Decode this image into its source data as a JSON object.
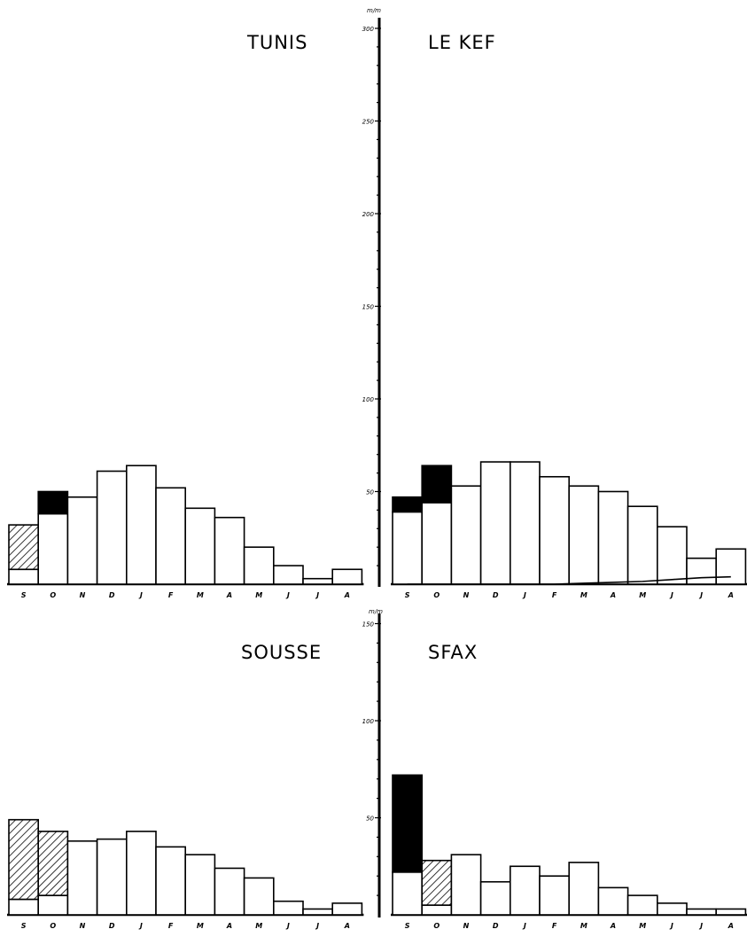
{
  "colors": {
    "ink": "#000000",
    "background": "#ffffff",
    "hatch": "#000000"
  },
  "chart_data": [
    {
      "type": "bar",
      "panel": "top-left",
      "title": "TUNIS",
      "unit_label": "m/m",
      "categories": [
        "S",
        "O",
        "N",
        "D",
        "J",
        "F",
        "M",
        "A",
        "M",
        "J",
        "J",
        "A"
      ],
      "ylim": [
        0,
        300
      ],
      "yticks": [
        50,
        100,
        150,
        200,
        250,
        300
      ],
      "series": [
        {
          "style": "white",
          "values": [
            8,
            38,
            47,
            61,
            64,
            52,
            41,
            36,
            20,
            10,
            3,
            8
          ]
        },
        {
          "style": "black",
          "values": [
            0,
            12,
            0,
            0,
            0,
            0,
            0,
            0,
            0,
            0,
            0,
            0
          ]
        },
        {
          "style": "hatched",
          "values": [
            24,
            0,
            0,
            0,
            0,
            0,
            0,
            0,
            0,
            0,
            0,
            0
          ]
        }
      ],
      "baseline_curve": [
        0,
        0,
        0,
        0,
        0,
        0,
        0,
        0,
        0,
        0,
        0,
        0
      ]
    },
    {
      "type": "bar",
      "panel": "top-right",
      "title": "LE KEF",
      "unit_label": "m/m",
      "categories": [
        "S",
        "O",
        "N",
        "D",
        "J",
        "F",
        "M",
        "A",
        "M",
        "J",
        "J",
        "A"
      ],
      "ylim": [
        0,
        300
      ],
      "yticks": [
        50,
        100,
        150,
        200,
        250,
        300
      ],
      "series": [
        {
          "style": "white",
          "values": [
            39,
            44,
            53,
            66,
            66,
            58,
            53,
            50,
            42,
            31,
            14,
            19
          ]
        },
        {
          "style": "black",
          "values": [
            8,
            20,
            0,
            0,
            0,
            0,
            0,
            0,
            0,
            0,
            0,
            0
          ]
        },
        {
          "style": "hatched",
          "values": [
            0,
            0,
            0,
            0,
            0,
            0,
            0,
            0,
            0,
            0,
            0,
            0
          ]
        }
      ],
      "baseline_curve": [
        0,
        0,
        0,
        0,
        0,
        0,
        0.5,
        1,
        1.5,
        2.5,
        3.5,
        4
      ]
    },
    {
      "type": "bar",
      "panel": "bottom-left",
      "title": "SOUSSE",
      "unit_label": "m/m",
      "categories": [
        "S",
        "O",
        "N",
        "D",
        "J",
        "F",
        "M",
        "A",
        "M",
        "J",
        "J",
        "A"
      ],
      "ylim": [
        0,
        150
      ],
      "yticks": [
        50,
        100,
        150
      ],
      "series": [
        {
          "style": "white",
          "values": [
            8,
            10,
            38,
            39,
            43,
            35,
            31,
            24,
            19,
            7,
            3,
            6
          ]
        },
        {
          "style": "black",
          "values": [
            0,
            0,
            0,
            0,
            0,
            0,
            0,
            0,
            0,
            0,
            0,
            0
          ]
        },
        {
          "style": "hatched",
          "values": [
            41,
            33,
            0,
            0,
            0,
            0,
            0,
            0,
            0,
            0,
            0,
            0
          ]
        }
      ],
      "baseline_curve": [
        0,
        0,
        0,
        0,
        0,
        0,
        0,
        0,
        0,
        0,
        0,
        0
      ]
    },
    {
      "type": "bar",
      "panel": "bottom-right",
      "title": "SFAX",
      "unit_label": "m/m",
      "categories": [
        "S",
        "O",
        "N",
        "D",
        "J",
        "F",
        "M",
        "A",
        "M",
        "J",
        "J",
        "A"
      ],
      "ylim": [
        0,
        150
      ],
      "yticks": [
        50,
        100,
        150
      ],
      "series": [
        {
          "style": "white",
          "values": [
            22,
            5,
            31,
            17,
            25,
            20,
            27,
            14,
            10,
            6,
            3,
            3
          ]
        },
        {
          "style": "black",
          "values": [
            50,
            0,
            0,
            0,
            0,
            0,
            0,
            0,
            0,
            0,
            0,
            0
          ]
        },
        {
          "style": "hatched",
          "values": [
            0,
            23,
            0,
            0,
            0,
            0,
            0,
            0,
            0,
            0,
            0,
            0
          ]
        }
      ],
      "baseline_curve": [
        0,
        0,
        0,
        0,
        0,
        0,
        0,
        0,
        0,
        0,
        0,
        0
      ]
    }
  ]
}
